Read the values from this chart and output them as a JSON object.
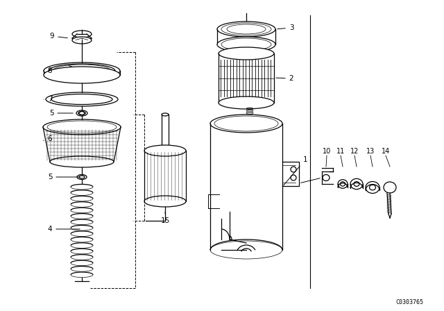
{
  "background_color": "#ffffff",
  "watermark": "C0303765",
  "lw": 0.9,
  "color": "#000000"
}
